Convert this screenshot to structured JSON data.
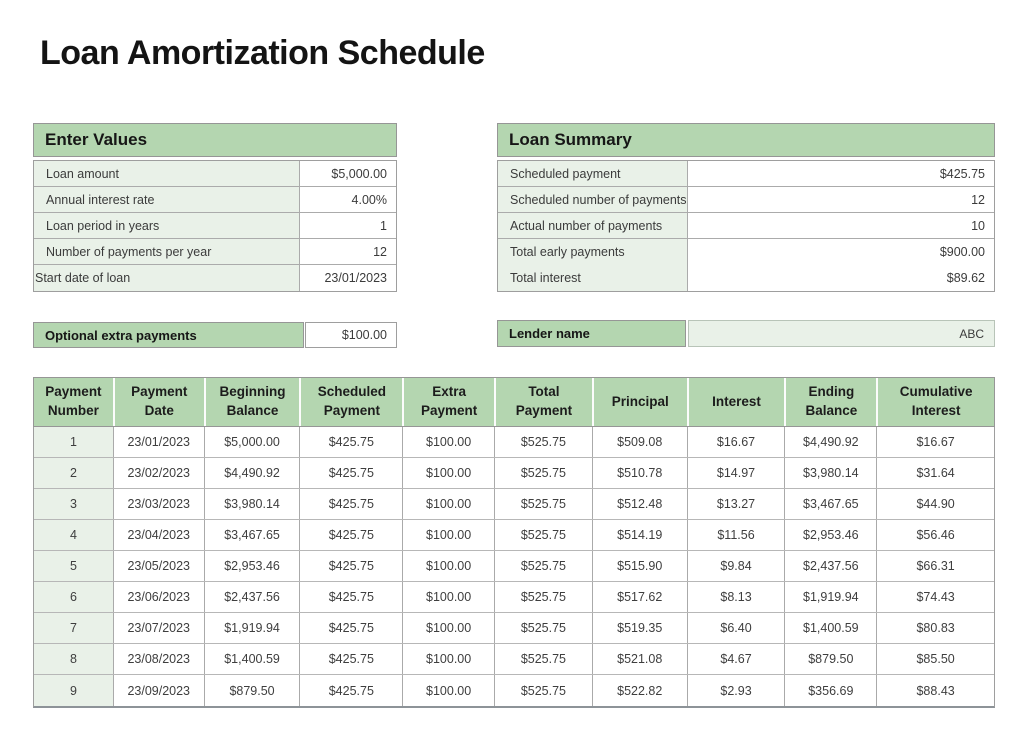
{
  "page": {
    "title": "Loan Amortization Schedule"
  },
  "colors": {
    "header_green": "#b4d6b0",
    "light_green": "#e9f1e8",
    "border_gray": "#9e9e9e"
  },
  "enter_values": {
    "title": "Enter Values",
    "rows": [
      {
        "label": "Loan amount",
        "value": "$5,000.00"
      },
      {
        "label": "Annual interest rate",
        "value": "4.00%"
      },
      {
        "label": "Loan period in years",
        "value": "1"
      },
      {
        "label": "Number of payments per year",
        "value": "12"
      },
      {
        "label": "Start date of loan",
        "value": "23/01/2023"
      }
    ],
    "extra_payment": {
      "label": "Optional extra payments",
      "value": "$100.00"
    }
  },
  "loan_summary": {
    "title": "Loan Summary",
    "rows": [
      {
        "label": "Scheduled payment",
        "value": "$425.75"
      },
      {
        "label": "Scheduled number of payments",
        "value": "12"
      },
      {
        "label": "Actual number of payments",
        "value": "10"
      },
      {
        "label": "Total early payments",
        "value": "$900.00"
      },
      {
        "label": "Total interest",
        "value": "$89.62"
      }
    ],
    "lender": {
      "label": "Lender name",
      "value": "ABC"
    }
  },
  "schedule_table": {
    "columns": [
      "Payment Number",
      "Payment Date",
      "Beginning Balance",
      "Scheduled Payment",
      "Extra Payment",
      "Total Payment",
      "Principal",
      "Interest",
      "Ending Balance",
      "Cumulative Interest"
    ],
    "rows": [
      {
        "number": "1",
        "date": "23/01/2023",
        "beginning_balance": "$5,000.00",
        "scheduled_payment": "$425.75",
        "extra_payment": "$100.00",
        "total_payment": "$525.75",
        "principal": "$509.08",
        "interest": "$16.67",
        "ending_balance": "$4,490.92",
        "cumulative_interest": "$16.67"
      },
      {
        "number": "2",
        "date": "23/02/2023",
        "beginning_balance": "$4,490.92",
        "scheduled_payment": "$425.75",
        "extra_payment": "$100.00",
        "total_payment": "$525.75",
        "principal": "$510.78",
        "interest": "$14.97",
        "ending_balance": "$3,980.14",
        "cumulative_interest": "$31.64"
      },
      {
        "number": "3",
        "date": "23/03/2023",
        "beginning_balance": "$3,980.14",
        "scheduled_payment": "$425.75",
        "extra_payment": "$100.00",
        "total_payment": "$525.75",
        "principal": "$512.48",
        "interest": "$13.27",
        "ending_balance": "$3,467.65",
        "cumulative_interest": "$44.90"
      },
      {
        "number": "4",
        "date": "23/04/2023",
        "beginning_balance": "$3,467.65",
        "scheduled_payment": "$425.75",
        "extra_payment": "$100.00",
        "total_payment": "$525.75",
        "principal": "$514.19",
        "interest": "$11.56",
        "ending_balance": "$2,953.46",
        "cumulative_interest": "$56.46"
      },
      {
        "number": "5",
        "date": "23/05/2023",
        "beginning_balance": "$2,953.46",
        "scheduled_payment": "$425.75",
        "extra_payment": "$100.00",
        "total_payment": "$525.75",
        "principal": "$515.90",
        "interest": "$9.84",
        "ending_balance": "$2,437.56",
        "cumulative_interest": "$66.31"
      },
      {
        "number": "6",
        "date": "23/06/2023",
        "beginning_balance": "$2,437.56",
        "scheduled_payment": "$425.75",
        "extra_payment": "$100.00",
        "total_payment": "$525.75",
        "principal": "$517.62",
        "interest": "$8.13",
        "ending_balance": "$1,919.94",
        "cumulative_interest": "$74.43"
      },
      {
        "number": "7",
        "date": "23/07/2023",
        "beginning_balance": "$1,919.94",
        "scheduled_payment": "$425.75",
        "extra_payment": "$100.00",
        "total_payment": "$525.75",
        "principal": "$519.35",
        "interest": "$6.40",
        "ending_balance": "$1,400.59",
        "cumulative_interest": "$80.83"
      },
      {
        "number": "8",
        "date": "23/08/2023",
        "beginning_balance": "$1,400.59",
        "scheduled_payment": "$425.75",
        "extra_payment": "$100.00",
        "total_payment": "$525.75",
        "principal": "$521.08",
        "interest": "$4.67",
        "ending_balance": "$879.50",
        "cumulative_interest": "$85.50"
      },
      {
        "number": "9",
        "date": "23/09/2023",
        "beginning_balance": "$879.50",
        "scheduled_payment": "$425.75",
        "extra_payment": "$100.00",
        "total_payment": "$525.75",
        "principal": "$522.82",
        "interest": "$2.93",
        "ending_balance": "$356.69",
        "cumulative_interest": "$88.43"
      }
    ]
  }
}
